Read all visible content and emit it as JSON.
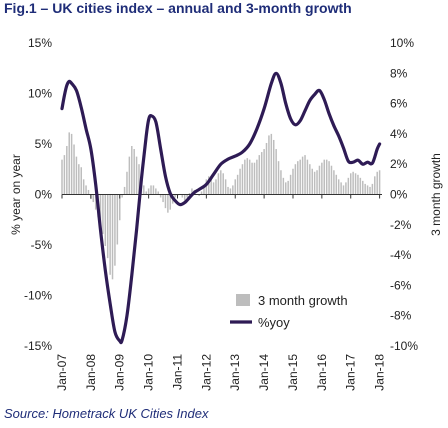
{
  "chart_data": {
    "type": "bar+line",
    "title": "Fig.1 – UK cities index – annual and 3-month growth",
    "source": "Source: Hometrack UK Cities Index",
    "y_left": {
      "label": "% year on year",
      "min": -15,
      "max": 15,
      "ticks": [
        15,
        10,
        5,
        0,
        -5,
        -10,
        -15
      ],
      "format": "%"
    },
    "y_right": {
      "label": "3 month growth",
      "min": -10,
      "max": 10,
      "ticks": [
        10,
        8,
        6,
        4,
        2,
        0,
        -2,
        -4,
        -6,
        -8,
        -10
      ],
      "format": "%"
    },
    "x": {
      "start": 2007.0,
      "end": 2018.083,
      "tick_labels": [
        "Jan-07",
        "Jan-08",
        "Jan-09",
        "Jan-10",
        "Jan-11",
        "Jan-12",
        "Jan-13",
        "Jan-14",
        "Jan-15",
        "Jan-16",
        "Jan-17",
        "Jan-18"
      ]
    },
    "legend": {
      "position": "bottom-right",
      "entries": [
        "3 month growth",
        "%yoy"
      ]
    },
    "series": [
      {
        "name": "3 month growth",
        "type": "bar",
        "axis": "right",
        "color": "#bdbdbd",
        "values": [
          [
            2007.0,
            2.3
          ],
          [
            2007.083,
            2.6
          ],
          [
            2007.167,
            3.2
          ],
          [
            2007.25,
            4.1
          ],
          [
            2007.333,
            4.0
          ],
          [
            2007.417,
            3.3
          ],
          [
            2007.5,
            2.5
          ],
          [
            2007.583,
            2.0
          ],
          [
            2007.667,
            1.8
          ],
          [
            2007.75,
            1.0
          ],
          [
            2007.833,
            0.6
          ],
          [
            2007.917,
            0.3
          ],
          [
            2008.0,
            -0.3
          ],
          [
            2008.083,
            -0.5
          ],
          [
            2008.167,
            -1.0
          ],
          [
            2008.25,
            -1.5
          ],
          [
            2008.333,
            -2.0
          ],
          [
            2008.417,
            -2.6
          ],
          [
            2008.5,
            -3.4
          ],
          [
            2008.583,
            -4.2
          ],
          [
            2008.667,
            -5.3
          ],
          [
            2008.75,
            -5.6
          ],
          [
            2008.833,
            -4.7
          ],
          [
            2008.917,
            -3.3
          ],
          [
            2009.0,
            -1.7
          ],
          [
            2009.083,
            -0.2
          ],
          [
            2009.167,
            0.5
          ],
          [
            2009.25,
            1.5
          ],
          [
            2009.333,
            2.5
          ],
          [
            2009.417,
            3.2
          ],
          [
            2009.5,
            3.0
          ],
          [
            2009.583,
            2.5
          ],
          [
            2009.667,
            2.0
          ],
          [
            2009.75,
            1.2
          ],
          [
            2009.833,
            0.6
          ],
          [
            2009.917,
            0.2
          ],
          [
            2010.0,
            0.4
          ],
          [
            2010.083,
            0.6
          ],
          [
            2010.167,
            0.6
          ],
          [
            2010.25,
            0.4
          ],
          [
            2010.333,
            0.2
          ],
          [
            2010.417,
            -0.2
          ],
          [
            2010.5,
            -0.5
          ],
          [
            2010.583,
            -0.9
          ],
          [
            2010.667,
            -1.2
          ],
          [
            2010.75,
            -1.0
          ],
          [
            2010.833,
            -0.6
          ],
          [
            2010.917,
            -0.2
          ],
          [
            2011.0,
            -0.1
          ],
          [
            2011.083,
            0.0
          ],
          [
            2011.167,
            -0.2
          ],
          [
            2011.25,
            -0.4
          ],
          [
            2011.333,
            -0.2
          ],
          [
            2011.417,
            0.1
          ],
          [
            2011.5,
            0.4
          ],
          [
            2011.583,
            0.3
          ],
          [
            2011.667,
            0.0
          ],
          [
            2011.75,
            -0.1
          ],
          [
            2011.833,
            0.2
          ],
          [
            2011.917,
            0.6
          ],
          [
            2012.0,
            1.0
          ],
          [
            2012.083,
            1.2
          ],
          [
            2012.167,
            1.0
          ],
          [
            2012.25,
            0.8
          ],
          [
            2012.333,
            1.0
          ],
          [
            2012.417,
            1.4
          ],
          [
            2012.5,
            1.6
          ],
          [
            2012.583,
            1.4
          ],
          [
            2012.667,
            1.0
          ],
          [
            2012.75,
            0.5
          ],
          [
            2012.833,
            0.4
          ],
          [
            2012.917,
            0.6
          ],
          [
            2013.0,
            1.0
          ],
          [
            2013.083,
            1.3
          ],
          [
            2013.167,
            1.7
          ],
          [
            2013.25,
            2.0
          ],
          [
            2013.333,
            2.3
          ],
          [
            2013.417,
            2.4
          ],
          [
            2013.5,
            2.3
          ],
          [
            2013.583,
            2.1
          ],
          [
            2013.667,
            2.1
          ],
          [
            2013.75,
            2.3
          ],
          [
            2013.833,
            2.6
          ],
          [
            2013.917,
            2.8
          ],
          [
            2014.0,
            3.0
          ],
          [
            2014.083,
            3.4
          ],
          [
            2014.167,
            3.9
          ],
          [
            2014.25,
            4.0
          ],
          [
            2014.333,
            3.6
          ],
          [
            2014.417,
            3.0
          ],
          [
            2014.5,
            2.2
          ],
          [
            2014.583,
            1.6
          ],
          [
            2014.667,
            1.1
          ],
          [
            2014.75,
            0.8
          ],
          [
            2014.833,
            0.9
          ],
          [
            2014.917,
            1.3
          ],
          [
            2015.0,
            1.7
          ],
          [
            2015.083,
            2.0
          ],
          [
            2015.167,
            2.2
          ],
          [
            2015.25,
            2.3
          ],
          [
            2015.333,
            2.5
          ],
          [
            2015.417,
            2.6
          ],
          [
            2015.5,
            2.3
          ],
          [
            2015.583,
            2.0
          ],
          [
            2015.667,
            1.7
          ],
          [
            2015.75,
            1.5
          ],
          [
            2015.833,
            1.6
          ],
          [
            2015.917,
            1.9
          ],
          [
            2016.0,
            2.1
          ],
          [
            2016.083,
            2.3
          ],
          [
            2016.167,
            2.3
          ],
          [
            2016.25,
            2.2
          ],
          [
            2016.333,
            1.9
          ],
          [
            2016.417,
            1.6
          ],
          [
            2016.5,
            1.3
          ],
          [
            2016.583,
            1.0
          ],
          [
            2016.667,
            0.8
          ],
          [
            2016.75,
            0.6
          ],
          [
            2016.833,
            0.8
          ],
          [
            2016.917,
            1.1
          ],
          [
            2017.0,
            1.4
          ],
          [
            2017.083,
            1.5
          ],
          [
            2017.167,
            1.4
          ],
          [
            2017.25,
            1.3
          ],
          [
            2017.333,
            1.1
          ],
          [
            2017.417,
            0.9
          ],
          [
            2017.5,
            0.7
          ],
          [
            2017.583,
            0.6
          ],
          [
            2017.667,
            0.5
          ],
          [
            2017.75,
            0.7
          ],
          [
            2017.833,
            1.2
          ],
          [
            2017.917,
            1.5
          ],
          [
            2018.0,
            1.6
          ]
        ]
      },
      {
        "name": "%yoy",
        "type": "line",
        "axis": "left",
        "color": "#2e1b55",
        "points": [
          [
            2007.0,
            8.5
          ],
          [
            2007.083,
            9.8
          ],
          [
            2007.167,
            10.8
          ],
          [
            2007.25,
            11.2
          ],
          [
            2007.333,
            11.0
          ],
          [
            2007.5,
            10.3
          ],
          [
            2007.667,
            8.6
          ],
          [
            2007.833,
            6.5
          ],
          [
            2008.0,
            4.5
          ],
          [
            2008.167,
            1.0
          ],
          [
            2008.333,
            -3.5
          ],
          [
            2008.5,
            -7.5
          ],
          [
            2008.667,
            -10.8
          ],
          [
            2008.833,
            -13.6
          ],
          [
            2009.0,
            -14.5
          ],
          [
            2009.083,
            -14.4
          ],
          [
            2009.25,
            -12.0
          ],
          [
            2009.417,
            -8.0
          ],
          [
            2009.583,
            -3.5
          ],
          [
            2009.75,
            1.5
          ],
          [
            2009.917,
            5.8
          ],
          [
            2010.0,
            7.4
          ],
          [
            2010.083,
            7.8
          ],
          [
            2010.25,
            7.2
          ],
          [
            2010.417,
            4.5
          ],
          [
            2010.583,
            1.8
          ],
          [
            2010.75,
            0.1
          ],
          [
            2010.917,
            -0.6
          ],
          [
            2011.083,
            -1.0
          ],
          [
            2011.25,
            -0.8
          ],
          [
            2011.417,
            -0.3
          ],
          [
            2011.583,
            0.2
          ],
          [
            2011.75,
            0.5
          ],
          [
            2012.0,
            1.0
          ],
          [
            2012.25,
            2.0
          ],
          [
            2012.5,
            3.0
          ],
          [
            2012.75,
            3.5
          ],
          [
            2013.0,
            3.8
          ],
          [
            2013.25,
            4.2
          ],
          [
            2013.5,
            5.0
          ],
          [
            2013.75,
            6.5
          ],
          [
            2014.0,
            8.5
          ],
          [
            2014.25,
            11.0
          ],
          [
            2014.417,
            12.0
          ],
          [
            2014.583,
            11.0
          ],
          [
            2014.75,
            9.0
          ],
          [
            2014.917,
            7.5
          ],
          [
            2015.083,
            6.9
          ],
          [
            2015.25,
            7.3
          ],
          [
            2015.417,
            8.3
          ],
          [
            2015.583,
            9.3
          ],
          [
            2015.75,
            9.9
          ],
          [
            2015.917,
            10.3
          ],
          [
            2016.083,
            9.4
          ],
          [
            2016.25,
            8.0
          ],
          [
            2016.417,
            6.8
          ],
          [
            2016.583,
            5.8
          ],
          [
            2016.75,
            4.6
          ],
          [
            2016.917,
            3.3
          ],
          [
            2017.083,
            3.2
          ],
          [
            2017.25,
            3.4
          ],
          [
            2017.417,
            3.0
          ],
          [
            2017.583,
            3.2
          ],
          [
            2017.75,
            3.1
          ],
          [
            2017.917,
            4.5
          ],
          [
            2018.0,
            5.0
          ]
        ]
      }
    ]
  }
}
